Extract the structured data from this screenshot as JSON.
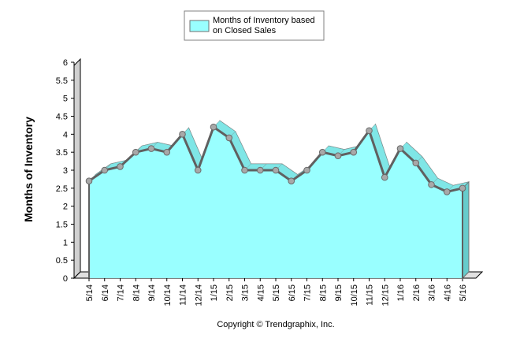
{
  "chart_data": {
    "type": "area",
    "title": "",
    "xlabel": "",
    "ylabel": "Months of Inventory",
    "ylim": [
      0,
      6
    ],
    "y_ticks": [
      "0",
      "0.5",
      "1",
      "1.5",
      "2",
      "2.5",
      "3",
      "3.5",
      "4",
      "4.5",
      "5",
      "5.5",
      "6"
    ],
    "grid": false,
    "legend_position": "top-center",
    "categories": [
      "5/14",
      "6/14",
      "7/14",
      "8/14",
      "9/14",
      "10/14",
      "11/14",
      "12/14",
      "1/15",
      "2/15",
      "3/15",
      "4/15",
      "5/15",
      "6/15",
      "7/15",
      "8/15",
      "9/15",
      "10/15",
      "11/15",
      "12/15",
      "1/16",
      "2/16",
      "3/16",
      "4/16",
      "5/16"
    ],
    "series": [
      {
        "name": "Months of Inventory based on Closed Sales",
        "values": [
          2.7,
          3.0,
          3.1,
          3.5,
          3.6,
          3.5,
          4.0,
          3.0,
          4.2,
          3.9,
          3.0,
          3.0,
          3.0,
          2.7,
          3.0,
          3.5,
          3.4,
          3.5,
          4.1,
          2.8,
          3.6,
          3.2,
          2.6,
          2.4,
          2.5
        ],
        "color": "#99FFFF"
      }
    ],
    "legend": {
      "line1": "Months of Inventory based",
      "line2": "on Closed Sales"
    }
  },
  "footer": {
    "copyright": "Copyright © Trendgraphix, Inc."
  },
  "colors": {
    "area_fill": "#99FFFF",
    "line": "#707070",
    "marker": "#A0A0A0",
    "depth_shade": "#808080"
  }
}
